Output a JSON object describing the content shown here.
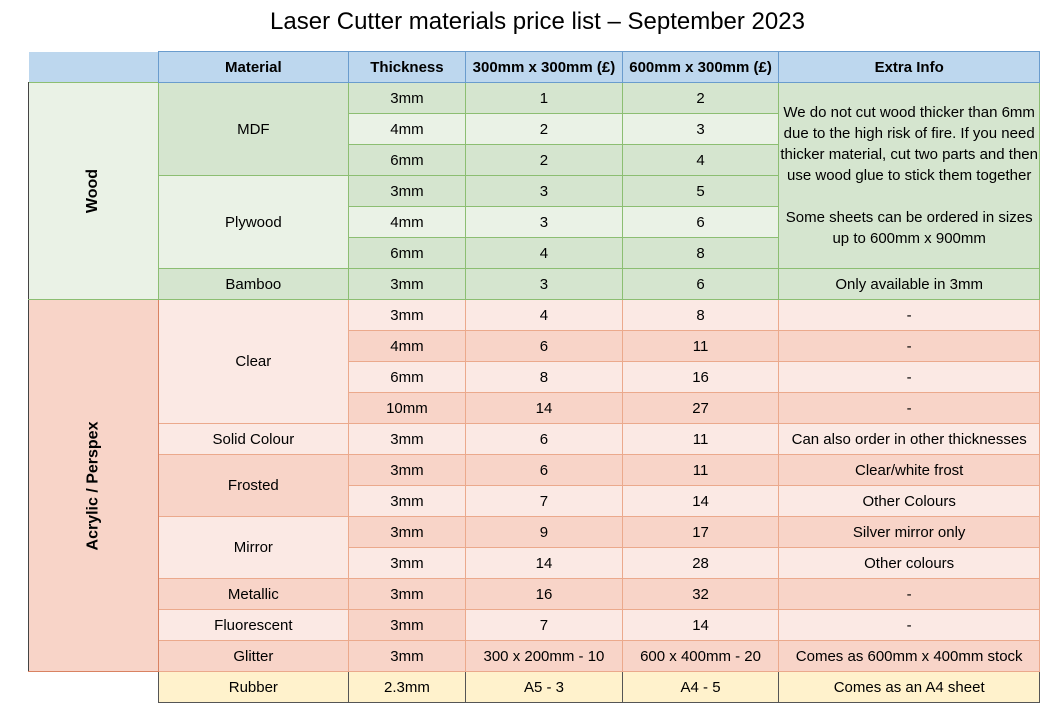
{
  "title": "Laser Cutter materials price list – September 2023",
  "headers": {
    "material": "Material",
    "thickness": "Thickness",
    "size_small": "300mm x 300mm (£)",
    "size_large": "600mm x 300mm (£)",
    "extra": "Extra Info"
  },
  "categories": {
    "wood": "Wood",
    "acrylic": "Acrylic / Perspex"
  },
  "wood": {
    "mdf": {
      "name": "MDF",
      "rows": [
        {
          "thickness": "3mm",
          "small": "1",
          "large": "2"
        },
        {
          "thickness": "4mm",
          "small": "2",
          "large": "3"
        },
        {
          "thickness": "6mm",
          "small": "2",
          "large": "4"
        }
      ]
    },
    "plywood": {
      "name": "Plywood",
      "rows": [
        {
          "thickness": "3mm",
          "small": "3",
          "large": "5"
        },
        {
          "thickness": "4mm",
          "small": "3",
          "large": "6"
        },
        {
          "thickness": "6mm",
          "small": "4",
          "large": "8"
        }
      ]
    },
    "bamboo": {
      "name": "Bamboo",
      "thickness": "3mm",
      "small": "3",
      "large": "6",
      "info": "Only available in 3mm"
    },
    "info_line1": "We do not cut wood thicker than 6mm due to the high risk of fire. If you need thicker material, cut two parts and then use wood glue to stick them together",
    "info_line2": "Some sheets can be ordered in sizes up to 600mm x 900mm"
  },
  "acrylic": {
    "clear": {
      "name": "Clear",
      "rows": [
        {
          "thickness": "3mm",
          "small": "4",
          "large": "8",
          "info": "-"
        },
        {
          "thickness": "4mm",
          "small": "6",
          "large": "11",
          "info": "-"
        },
        {
          "thickness": "6mm",
          "small": "8",
          "large": "16",
          "info": "-"
        },
        {
          "thickness": "10mm",
          "small": "14",
          "large": "27",
          "info": "-"
        }
      ]
    },
    "solid": {
      "name": "Solid Colour",
      "thickness": "3mm",
      "small": "6",
      "large": "11",
      "info": "Can also order in other thicknesses"
    },
    "frosted": {
      "name": "Frosted",
      "rows": [
        {
          "thickness": "3mm",
          "small": "6",
          "large": "11",
          "info": "Clear/white frost"
        },
        {
          "thickness": "3mm",
          "small": "7",
          "large": "14",
          "info": "Other Colours"
        }
      ]
    },
    "mirror": {
      "name": "Mirror",
      "rows": [
        {
          "thickness": "3mm",
          "small": "9",
          "large": "17",
          "info": "Silver mirror only"
        },
        {
          "thickness": "3mm",
          "small": "14",
          "large": "28",
          "info": "Other colours"
        }
      ]
    },
    "metallic": {
      "name": "Metallic",
      "thickness": "3mm",
      "small": "16",
      "large": "32",
      "info": "-"
    },
    "fluorescent": {
      "name": "Fluorescent",
      "thickness": "3mm",
      "small": "7",
      "large": "14",
      "info": "-"
    },
    "glitter": {
      "name": "Glitter",
      "thickness": "3mm",
      "small": "300 x 200mm - 10",
      "large": "600 x 400mm - 20",
      "info": "Comes as 600mm x 400mm stock"
    }
  },
  "rubber": {
    "name": "Rubber",
    "thickness": "2.3mm",
    "small": "A5 - 3",
    "large": "A4 - 5",
    "info": "Comes as an A4 sheet"
  },
  "colors": {
    "header": "#bdd7ee",
    "wood_dark": "#d5e5cf",
    "wood_light": "#eaf2e6",
    "acrylic_light": "#fbe9e4",
    "acrylic_dark": "#f8d4c8",
    "rubber": "#fff2cc"
  }
}
